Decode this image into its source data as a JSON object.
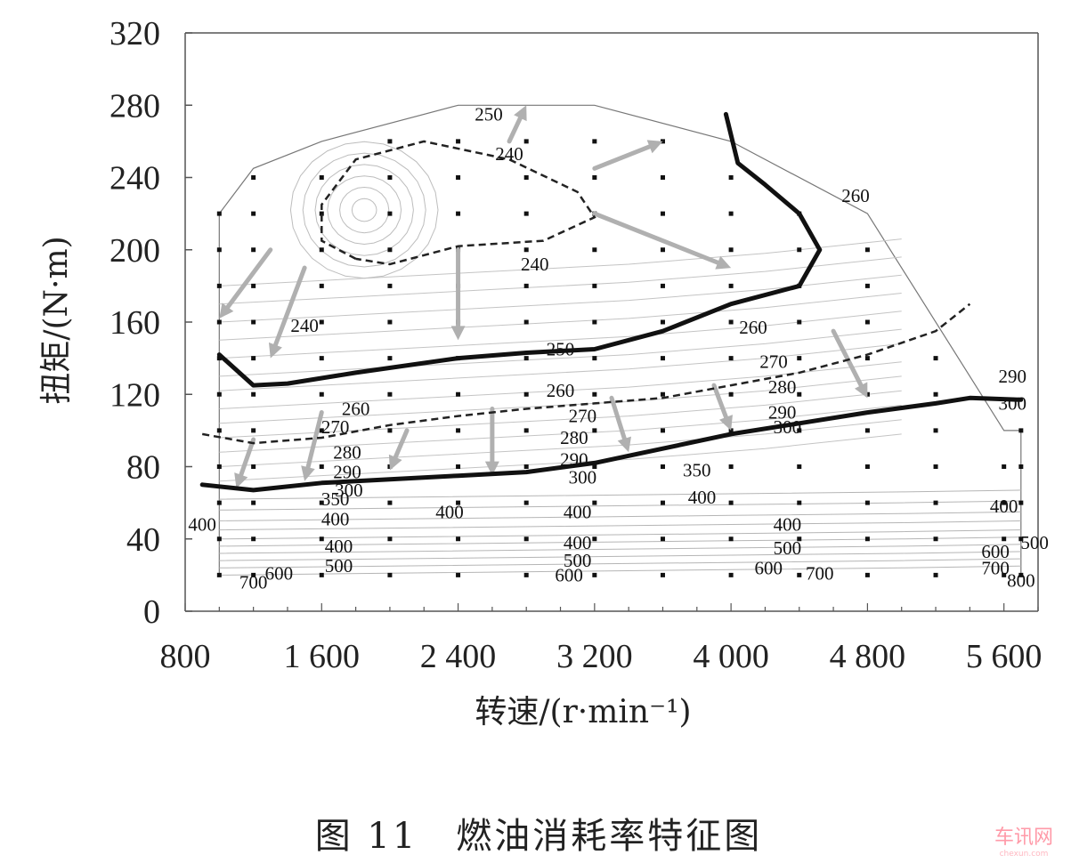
{
  "chart_data": {
    "type": "contour",
    "caption": "图 11　燃油消耗率特征图",
    "xlabel": "转速/(r·min⁻¹)",
    "ylabel": "扭矩/(N·m)",
    "xlim": [
      800,
      5800
    ],
    "ylim": [
      0,
      320
    ],
    "x_ticks": [
      800,
      1600,
      2400,
      3200,
      4000,
      4800,
      5600
    ],
    "x_tick_labels": [
      "800",
      "1 600",
      "2 400",
      "3 200",
      "4 000",
      "4 800",
      "5 600"
    ],
    "y_ticks": [
      0,
      40,
      80,
      120,
      160,
      200,
      240,
      280,
      320
    ],
    "y_tick_labels": [
      "0",
      "40",
      "80",
      "120",
      "160",
      "200",
      "240",
      "280",
      "320"
    ],
    "grid": false,
    "operating_envelope": [
      [
        1000,
        20
      ],
      [
        1000,
        220
      ],
      [
        1200,
        245
      ],
      [
        1600,
        260
      ],
      [
        2400,
        280
      ],
      [
        3200,
        280
      ],
      [
        4000,
        260
      ],
      [
        4800,
        220
      ],
      [
        5600,
        100
      ],
      [
        5700,
        100
      ],
      [
        5700,
        20
      ]
    ],
    "bold_contours": [
      {
        "points": [
          [
            3970,
            275
          ],
          [
            4040,
            248
          ],
          [
            4200,
            236
          ],
          [
            4400,
            220
          ],
          [
            4520,
            200
          ],
          [
            4400,
            180
          ],
          [
            4000,
            170
          ],
          [
            3600,
            155
          ],
          [
            3200,
            145
          ],
          [
            2800,
            143
          ],
          [
            2400,
            140
          ],
          [
            1800,
            132
          ],
          [
            1400,
            126
          ],
          [
            1200,
            125
          ],
          [
            1000,
            142
          ]
        ]
      },
      {
        "points": [
          [
            900,
            70
          ],
          [
            1200,
            67
          ],
          [
            1600,
            71
          ],
          [
            2000,
            73
          ],
          [
            2400,
            75
          ],
          [
            2800,
            77
          ],
          [
            3200,
            82
          ],
          [
            3600,
            90
          ],
          [
            4000,
            98
          ],
          [
            4400,
            104
          ],
          [
            4800,
            110
          ],
          [
            5200,
            115
          ],
          [
            5400,
            118
          ],
          [
            5700,
            117
          ]
        ]
      }
    ],
    "dashed_contours": [
      {
        "points": [
          [
            1800,
            195
          ],
          [
            1600,
            205
          ],
          [
            1600,
            225
          ],
          [
            1800,
            250
          ],
          [
            2200,
            260
          ],
          [
            2700,
            250
          ],
          [
            3100,
            232
          ],
          [
            3200,
            218
          ],
          [
            2900,
            205
          ],
          [
            2400,
            202
          ],
          [
            2000,
            192
          ],
          [
            1800,
            195
          ]
        ]
      },
      {
        "points": [
          [
            900,
            98
          ],
          [
            1200,
            93
          ],
          [
            1600,
            96
          ],
          [
            2000,
            103
          ],
          [
            2400,
            108
          ],
          [
            2800,
            112
          ],
          [
            3200,
            115
          ],
          [
            3600,
            118
          ],
          [
            4000,
            125
          ],
          [
            4400,
            132
          ],
          [
            4800,
            142
          ],
          [
            5200,
            155
          ],
          [
            5400,
            170
          ]
        ]
      }
    ],
    "arrows": [
      {
        "from": [
          1300,
          200
        ],
        "to": [
          1000,
          162
        ]
      },
      {
        "from": [
          1500,
          190
        ],
        "to": [
          1300,
          140
        ]
      },
      {
        "from": [
          2400,
          200
        ],
        "to": [
          2400,
          150
        ]
      },
      {
        "from": [
          2700,
          260
        ],
        "to": [
          2800,
          280
        ]
      },
      {
        "from": [
          3200,
          245
        ],
        "to": [
          3600,
          260
        ]
      },
      {
        "from": [
          3200,
          220
        ],
        "to": [
          4000,
          190
        ]
      },
      {
        "from": [
          1200,
          95
        ],
        "to": [
          1100,
          68
        ]
      },
      {
        "from": [
          1600,
          110
        ],
        "to": [
          1500,
          72
        ]
      },
      {
        "from": [
          2100,
          100
        ],
        "to": [
          2000,
          78
        ]
      },
      {
        "from": [
          2600,
          112
        ],
        "to": [
          2600,
          75
        ]
      },
      {
        "from": [
          3300,
          118
        ],
        "to": [
          3400,
          88
        ]
      },
      {
        "from": [
          3900,
          125
        ],
        "to": [
          4000,
          100
        ]
      },
      {
        "from": [
          4600,
          155
        ],
        "to": [
          4800,
          118
        ]
      }
    ],
    "contour_labels": [
      {
        "text": "250",
        "x": 2580,
        "y": 275
      },
      {
        "text": "240",
        "x": 2700,
        "y": 253
      },
      {
        "text": "240",
        "x": 2850,
        "y": 192
      },
      {
        "text": "240",
        "x": 1500,
        "y": 158
      },
      {
        "text": "260",
        "x": 4730,
        "y": 230
      },
      {
        "text": "260",
        "x": 4130,
        "y": 157
      },
      {
        "text": "260",
        "x": 3000,
        "y": 122
      },
      {
        "text": "260",
        "x": 1800,
        "y": 112
      },
      {
        "text": "250",
        "x": 3000,
        "y": 145
      },
      {
        "text": "270",
        "x": 4250,
        "y": 138
      },
      {
        "text": "270",
        "x": 1680,
        "y": 102
      },
      {
        "text": "270",
        "x": 3130,
        "y": 108
      },
      {
        "text": "280",
        "x": 4300,
        "y": 124
      },
      {
        "text": "280",
        "x": 1750,
        "y": 88
      },
      {
        "text": "280",
        "x": 3080,
        "y": 96
      },
      {
        "text": "290",
        "x": 4300,
        "y": 110
      },
      {
        "text": "290",
        "x": 5650,
        "y": 130
      },
      {
        "text": "290",
        "x": 1750,
        "y": 77
      },
      {
        "text": "290",
        "x": 3080,
        "y": 84
      },
      {
        "text": "300",
        "x": 5650,
        "y": 115
      },
      {
        "text": "300",
        "x": 4330,
        "y": 102
      },
      {
        "text": "300",
        "x": 1760,
        "y": 67
      },
      {
        "text": "300",
        "x": 3130,
        "y": 74
      },
      {
        "text": "350",
        "x": 3800,
        "y": 78
      },
      {
        "text": "350",
        "x": 1680,
        "y": 62
      },
      {
        "text": "400",
        "x": 900,
        "y": 48
      },
      {
        "text": "400",
        "x": 1680,
        "y": 51
      },
      {
        "text": "400",
        "x": 2350,
        "y": 55
      },
      {
        "text": "400",
        "x": 3100,
        "y": 55
      },
      {
        "text": "400",
        "x": 3830,
        "y": 63
      },
      {
        "text": "400",
        "x": 4330,
        "y": 48
      },
      {
        "text": "400",
        "x": 5600,
        "y": 58
      },
      {
        "text": "400",
        "x": 1700,
        "y": 36
      },
      {
        "text": "400",
        "x": 3100,
        "y": 38
      },
      {
        "text": "500",
        "x": 4330,
        "y": 35
      },
      {
        "text": "500",
        "x": 1700,
        "y": 25
      },
      {
        "text": "500",
        "x": 3100,
        "y": 28
      },
      {
        "text": "500",
        "x": 5780,
        "y": 38
      },
      {
        "text": "600",
        "x": 1350,
        "y": 21
      },
      {
        "text": "600",
        "x": 3050,
        "y": 20
      },
      {
        "text": "600",
        "x": 4220,
        "y": 24
      },
      {
        "text": "600",
        "x": 5550,
        "y": 33
      },
      {
        "text": "700",
        "x": 1200,
        "y": 16
      },
      {
        "text": "700",
        "x": 4520,
        "y": 21
      },
      {
        "text": "700",
        "x": 5550,
        "y": 24
      },
      {
        "text": "800",
        "x": 5700,
        "y": 17
      }
    ],
    "operating_point_rpm": [
      1000,
      1200,
      1600,
      2000,
      2400,
      2800,
      3200,
      3600,
      4000,
      4400,
      4800,
      5200,
      5600,
      5700
    ],
    "operating_point_torque": [
      20,
      40,
      60,
      80,
      100,
      120,
      140,
      160,
      180,
      200,
      220,
      240,
      260,
      280
    ]
  },
  "watermark": {
    "text": "车讯网",
    "sub": "chexun.com"
  }
}
